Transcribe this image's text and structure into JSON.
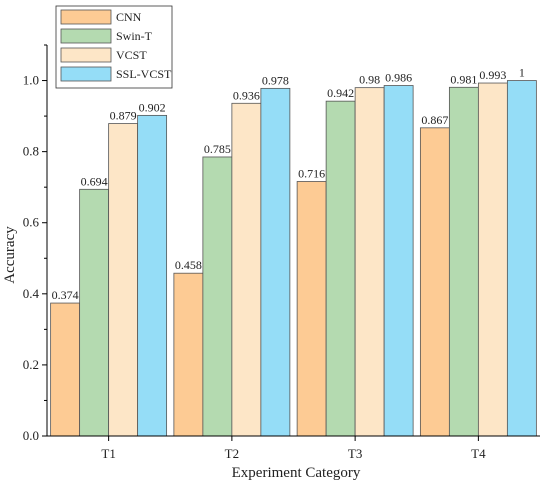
{
  "chart_data": {
    "type": "bar",
    "title": "",
    "xlabel": "Experiment Category",
    "ylabel": "Accuracy",
    "categories": [
      "T1",
      "T2",
      "T3",
      "T4"
    ],
    "ylim": [
      0,
      1.1
    ],
    "yticks": [
      "0.0",
      "0.2",
      "0.4",
      "0.6",
      "0.8",
      "1.0"
    ],
    "ytick_values": [
      0,
      0.2,
      0.4,
      0.6,
      0.8,
      1.0
    ],
    "grid": false,
    "legend_position": "top-left",
    "series": [
      {
        "name": "CNN",
        "color": "#FDCB94",
        "values": [
          0.374,
          0.458,
          0.716,
          0.867
        ],
        "labels": [
          "0.374",
          "0.458",
          "0.716",
          "0.867"
        ]
      },
      {
        "name": "Swin-T",
        "color": "#B4DAB0",
        "values": [
          0.694,
          0.785,
          0.942,
          0.981
        ],
        "labels": [
          "0.694",
          "0.785",
          "0.942",
          "0.981"
        ]
      },
      {
        "name": "VCST",
        "color": "#FDE6C7",
        "values": [
          0.879,
          0.936,
          0.98,
          0.993
        ],
        "labels": [
          "0.879",
          "0.936",
          "0.98",
          "0.993"
        ]
      },
      {
        "name": "SSL-VCST",
        "color": "#95DDF7",
        "values": [
          0.902,
          0.978,
          0.986,
          1
        ],
        "labels": [
          "0.902",
          "0.978",
          "0.986",
          "1"
        ]
      }
    ]
  }
}
